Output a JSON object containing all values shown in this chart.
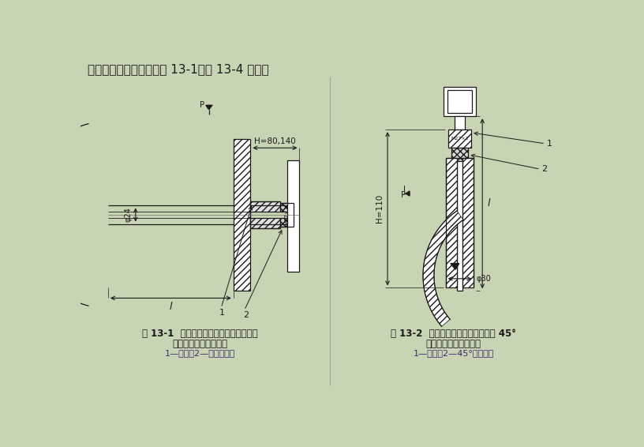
{
  "bg_color": "#c8d5b5",
  "title": "双金属温度计安装图如图 13-1～图 13-4 所示。",
  "title_fontsize": 11,
  "fig1_caption_line1": "图 13-1  双金属温度计在钢管道、设备上",
  "fig1_caption_line2": "安装图（外螺纹接头）",
  "fig1_caption_line3": "1—垫片；2—直形连接头",
  "fig2_caption_line1": "图 13-2  双金属温度计在钢管道上斜 45°",
  "fig2_caption_line2": "安装图（外螺纹接头）",
  "fig2_caption_line3": "1—垫片；2—45°角连接头",
  "line_color": "#1a1a1a",
  "caption_color": "#3a2a6a",
  "fig_label_color": "#1a1a1a"
}
